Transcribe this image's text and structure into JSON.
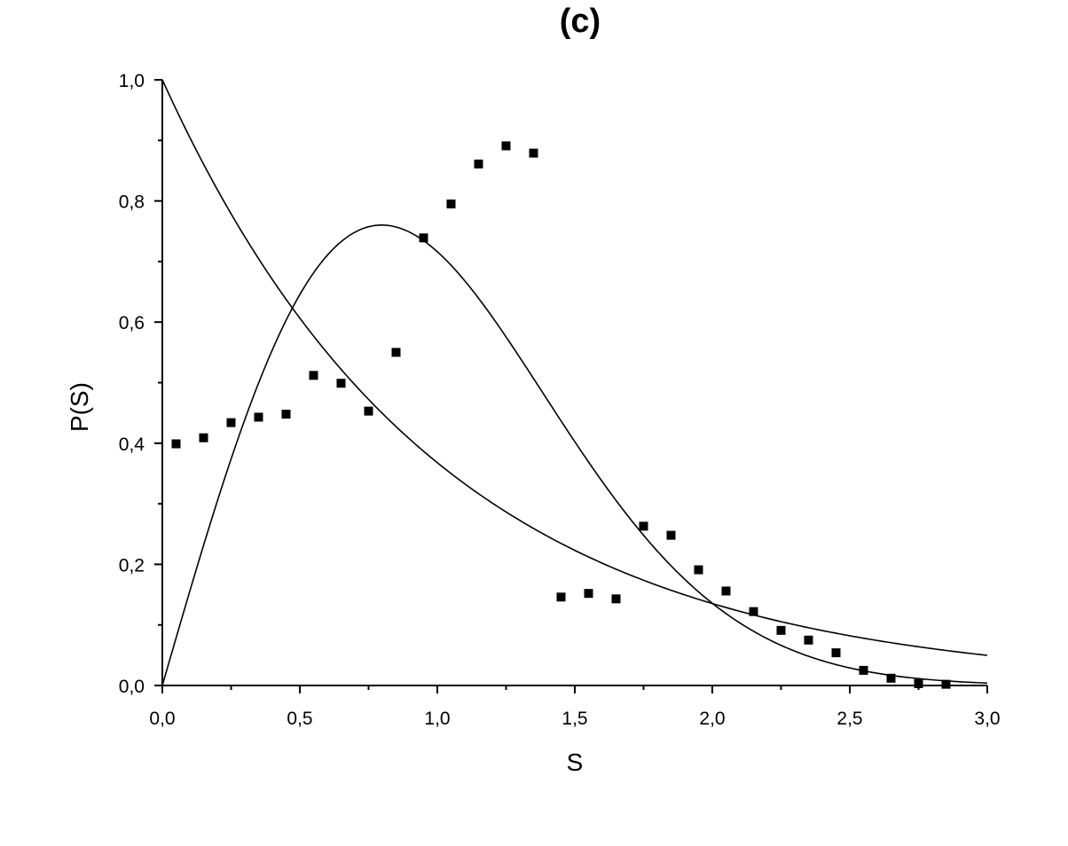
{
  "chart_data": {
    "type": "scatter",
    "title": "(c)",
    "xlabel": "S",
    "ylabel": "P(S)",
    "xlim": [
      0.0,
      3.0
    ],
    "ylim": [
      0.0,
      1.0
    ],
    "x_ticks": [
      {
        "value": 0.0,
        "label": "0,0"
      },
      {
        "value": 0.5,
        "label": "0,5"
      },
      {
        "value": 1.0,
        "label": "1,0"
      },
      {
        "value": 1.5,
        "label": "1,5"
      },
      {
        "value": 2.0,
        "label": "2,0"
      },
      {
        "value": 2.5,
        "label": "2,5"
      },
      {
        "value": 3.0,
        "label": "3,0"
      }
    ],
    "y_ticks": [
      {
        "value": 0.0,
        "label": "0,0"
      },
      {
        "value": 0.2,
        "label": "0,2"
      },
      {
        "value": 0.4,
        "label": "0,4"
      },
      {
        "value": 0.6,
        "label": "0,6"
      },
      {
        "value": 0.8,
        "label": "0,8"
      },
      {
        "value": 1.0,
        "label": "1,0"
      }
    ],
    "grid": false,
    "legend": "none",
    "points": [
      {
        "x": 0.05,
        "y": 0.399
      },
      {
        "x": 0.15,
        "y": 0.409
      },
      {
        "x": 0.25,
        "y": 0.434
      },
      {
        "x": 0.35,
        "y": 0.443
      },
      {
        "x": 0.45,
        "y": 0.448
      },
      {
        "x": 0.55,
        "y": 0.512
      },
      {
        "x": 0.65,
        "y": 0.499
      },
      {
        "x": 0.75,
        "y": 0.453
      },
      {
        "x": 0.85,
        "y": 0.55
      },
      {
        "x": 0.95,
        "y": 0.739
      },
      {
        "x": 1.05,
        "y": 0.795
      },
      {
        "x": 1.15,
        "y": 0.861
      },
      {
        "x": 1.25,
        "y": 0.891
      },
      {
        "x": 1.35,
        "y": 0.879
      },
      {
        "x": 1.45,
        "y": 0.146
      },
      {
        "x": 1.55,
        "y": 0.152
      },
      {
        "x": 1.65,
        "y": 0.143
      },
      {
        "x": 1.75,
        "y": 0.263
      },
      {
        "x": 1.85,
        "y": 0.248
      },
      {
        "x": 1.95,
        "y": 0.191
      },
      {
        "x": 2.05,
        "y": 0.156
      },
      {
        "x": 2.15,
        "y": 0.122
      },
      {
        "x": 2.25,
        "y": 0.091
      },
      {
        "x": 2.35,
        "y": 0.075
      },
      {
        "x": 2.45,
        "y": 0.054
      },
      {
        "x": 2.55,
        "y": 0.025
      },
      {
        "x": 2.65,
        "y": 0.012
      },
      {
        "x": 2.75,
        "y": 0.003
      },
      {
        "x": 2.85,
        "y": 0.002
      }
    ],
    "curves": [
      {
        "function": "exp(-s)",
        "x_range": [
          0.0,
          3.0
        ]
      },
      {
        "function": "(pi/2)*s*exp(-pi*s^2/4)",
        "x_range": [
          0.0,
          3.0
        ]
      }
    ],
    "marker": "square",
    "color": "#000000"
  }
}
